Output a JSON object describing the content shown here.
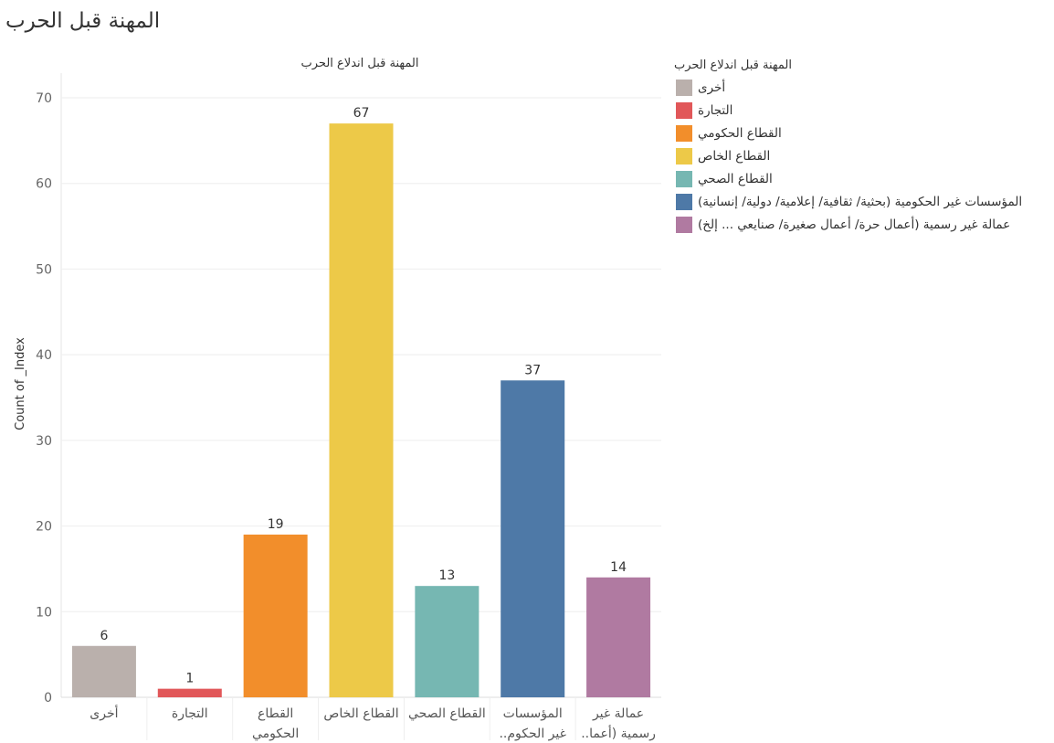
{
  "page_title": "المهنة قبل الحرب",
  "chart_data": {
    "type": "bar",
    "title": "المهنة قبل اندلاع الحرب",
    "ylabel": "Count of _Index",
    "xlabel": "",
    "ylim": [
      0,
      70
    ],
    "yticks": [
      0,
      10,
      20,
      30,
      40,
      50,
      60,
      70
    ],
    "grid": true,
    "legend_position": "right",
    "categories": [
      [
        "أخرى"
      ],
      [
        "التجارة"
      ],
      [
        "القطاع",
        "الحكومي"
      ],
      [
        "القطاع الخاص"
      ],
      [
        "القطاع الصحي"
      ],
      [
        "المؤسسات",
        "غير الحكوم.."
      ],
      [
        "عمالة غير",
        "رسمية (أعما.."
      ]
    ],
    "values": [
      6,
      1,
      19,
      67,
      13,
      37,
      14
    ],
    "colors": [
      "#bab0ac",
      "#e15759",
      "#f28e2b",
      "#edc948",
      "#76b7b2",
      "#4e79a7",
      "#b07aa1"
    ]
  },
  "legend": {
    "title": "المهنة قبل اندلاع الحرب",
    "items": [
      {
        "label": "أخرى",
        "color": "#bab0ac"
      },
      {
        "label": "التجارة",
        "color": "#e15759"
      },
      {
        "label": "القطاع الحكومي",
        "color": "#f28e2b"
      },
      {
        "label": "القطاع الخاص",
        "color": "#edc948"
      },
      {
        "label": "القطاع الصحي",
        "color": "#76b7b2"
      },
      {
        "label": "المؤسسات غير الحكومية (بحثية/ ثقافية/ إعلامية/ دولية/ إنسانية)",
        "color": "#4e79a7"
      },
      {
        "label": "عمالة غير رسمية (أعمال حرة/ أعمال صغيرة/ صنايعي ... إلخ)",
        "color": "#b07aa1"
      }
    ]
  }
}
